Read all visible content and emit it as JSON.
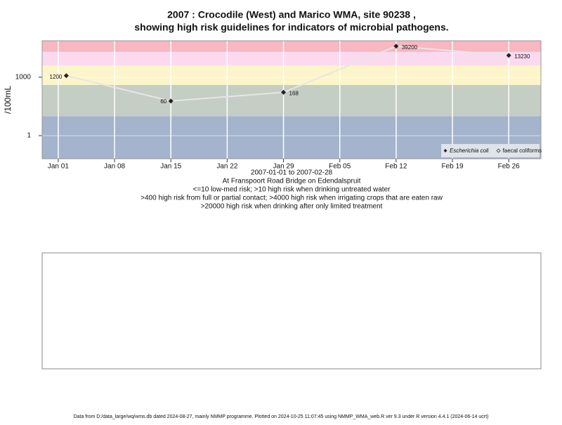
{
  "chart_data": {
    "type": "line",
    "title": "2007 : Crocodile (West) and Marico WMA, site 90238 ,",
    "subtitle": "showing high risk guidelines for indicators of microbial pathogens.",
    "ylabel": "/100mL",
    "xlabel": "2007-01-01 to 2007-02-28",
    "notes": [
      "At Franspoort Road Bridge on Edendalspruit",
      "<=10 low-med risk; >10 high risk when drinking untreated water",
      ">400 high risk from full or partial contact; >4000 high risk when irrigating crops that are eaten raw",
      ">20000 high risk when drinking after only limited treatment"
    ],
    "x": [
      "2007-01-02",
      "2007-01-15",
      "2007-01-29",
      "2007-02-12",
      "2007-02-26"
    ],
    "series": [
      {
        "name": "Escherichia coli",
        "color": "#222222",
        "line_color": "#e6e6e6",
        "values": [
          1200,
          60,
          168,
          39200,
          13230
        ]
      },
      {
        "name": "faecal coliforms",
        "color": "#222222",
        "values": [
          null,
          null,
          null,
          null,
          null
        ]
      }
    ],
    "xlim": [
      "2006-12-30",
      "2007-03-02"
    ],
    "xticks": [
      {
        "value": "2007-01-01",
        "label": "Jan 01"
      },
      {
        "value": "2007-01-08",
        "label": "Jan 08"
      },
      {
        "value": "2007-01-15",
        "label": "Jan 15"
      },
      {
        "value": "2007-01-22",
        "label": "Jan 22"
      },
      {
        "value": "2007-01-29",
        "label": "Jan 29"
      },
      {
        "value": "2007-02-05",
        "label": "Feb 05"
      },
      {
        "value": "2007-02-12",
        "label": "Feb 12"
      },
      {
        "value": "2007-02-19",
        "label": "Feb 19"
      },
      {
        "value": "2007-02-26",
        "label": "Feb 26"
      }
    ],
    "ylim": [
      0.065,
      75000
    ],
    "yticks": [
      1,
      1000
    ],
    "log_y": true,
    "grid": true,
    "legend": "bottom-right",
    "guidelines": [
      10,
      400,
      4000,
      20000
    ],
    "band_colors": [
      "#a3b4cc",
      "#c5cec4",
      "#fbf5c9",
      "#fbdaf0",
      "#f8b7c1"
    ]
  },
  "footer": "Data from D:/data_large/wq/wms.db dated 2024-08-27, mainly NMMP programme. Plotted on 2024-10-25 11:07:45 using NMMP_WMA_web.R ver 9.3 under R version 4.4.1 (2024-06-14 ucrt)"
}
